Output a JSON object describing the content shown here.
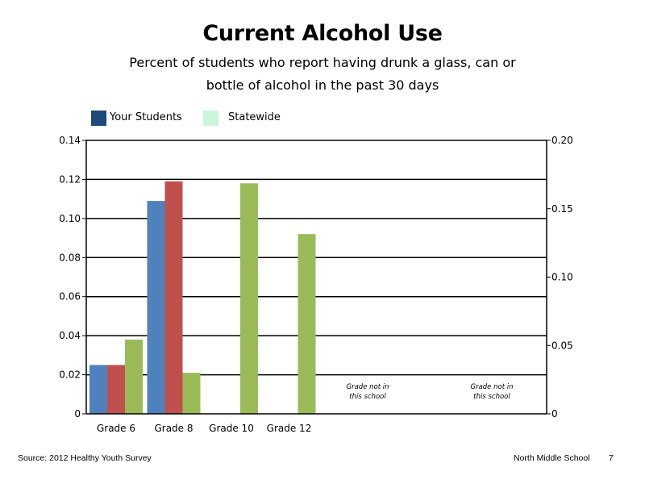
{
  "header": {
    "title": "Current Alcohol Use",
    "subtitle_line1": "Percent of students who report having drunk a glass, can or",
    "subtitle_line2": "bottle of alcohol in the past 30 days"
  },
  "legend": {
    "items": [
      {
        "label": "Your Students",
        "color": "#1f497d"
      },
      {
        "label": "Statewide",
        "color": "#ccf5dd"
      }
    ]
  },
  "footer": {
    "source": "Source: 2012 Healthy Youth Survey",
    "school": "North Middle School",
    "page_number": "7"
  },
  "chart_data": {
    "type": "bar",
    "categories": [
      "Grade 6",
      "Grade 8",
      "Grade 10",
      "Grade 12"
    ],
    "series": [
      {
        "color": "#4f81bd",
        "values": [
          0.025,
          0.109,
          null,
          null
        ]
      },
      {
        "color": "#c0504d",
        "values": [
          0.025,
          0.119,
          null,
          null
        ]
      },
      {
        "color": "#9bbb59",
        "values": [
          0.038,
          0.021,
          0.118,
          0.092
        ]
      }
    ],
    "left_axis": {
      "ylim": [
        0,
        0.14
      ],
      "ticks": [
        "0",
        "0.02",
        "0.04",
        "0.06",
        "0.08",
        "0.10",
        "0.12",
        "0.14"
      ]
    },
    "right_axis": {
      "ylim": [
        0,
        0.2
      ],
      "ticks": [
        "0",
        "0.05",
        "0.10",
        "0.15",
        "0.20"
      ]
    },
    "notes": [
      {
        "line1": "Grade not in",
        "line2": "this school"
      },
      {
        "line1": "Grade not in",
        "line2": "this school"
      }
    ],
    "grid": true,
    "legend_position": "top-left"
  }
}
